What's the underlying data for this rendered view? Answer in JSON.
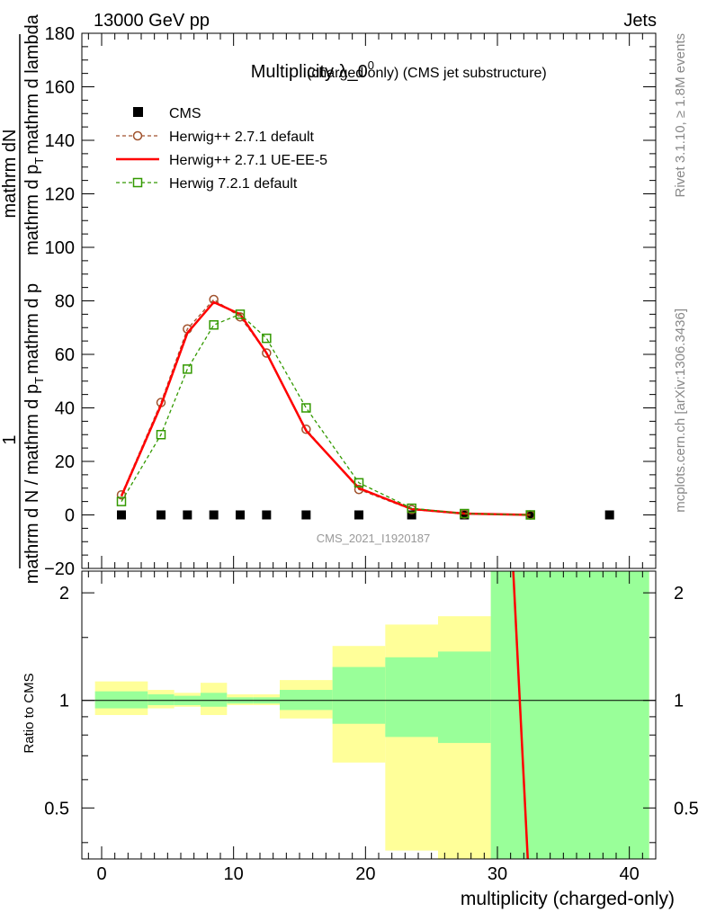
{
  "header": {
    "energy_label": "13000 GeV pp",
    "category_label": "Jets",
    "rivet_version": "Rivet 3.1.10, ≥ 1.8M events",
    "source_credit": "mcplots.cern.ch [arXiv:1306.3436]",
    "analysis_id": "CMS_2021_I1920187"
  },
  "chart_data": {
    "type": "line",
    "title_main": "Multiplicity λ_0",
    "title_sup": "0",
    "title_suffix": "(charged only) (CMS jet substructure)",
    "ylabel_fraction_top": "1",
    "ylabel_fraction_bottom": "mathrm d N / mathrm d p",
    "ylabel_fraction_bottom_sub": "T",
    "ylabel_fraction_bottom_tail": "mathrm d p",
    "ylabel_full_top": "mathrm d",
    "ylabel_full_top_tail": "N",
    "ylabel_full_bottom": "mathrm d p",
    "ylabel_full_bottom_sub": "T",
    "ylabel_full_bottom_tail": "mathrm d lambda",
    "xlabel": "multiplicity (charged-only)",
    "ratio_ylabel": "Ratio to CMS",
    "xlim": [
      -1.5,
      42
    ],
    "ylim": [
      -20,
      180
    ],
    "ratio_ylim": [
      0.36,
      2.3
    ],
    "x_ticks": [
      0,
      10,
      20,
      30,
      40
    ],
    "y_ticks": [
      -20,
      0,
      20,
      40,
      60,
      80,
      100,
      120,
      140,
      160,
      180
    ],
    "ratio_ticks": [
      0.5,
      1,
      2
    ],
    "legend_position": "top-left",
    "series": [
      {
        "name": "CMS",
        "style": "data",
        "color": "#000000",
        "x": [
          1.5,
          4.5,
          6.5,
          8.5,
          10.5,
          12.5,
          15.5,
          19.5,
          23.5,
          27.5,
          32.5,
          38.5
        ],
        "y": [
          0,
          0,
          0,
          0,
          0,
          0,
          0,
          0,
          0,
          0,
          0,
          0
        ]
      },
      {
        "name": "Herwig++ 2.7.1 default",
        "style": "dashed-circle",
        "color": "#a0522d",
        "x": [
          1.5,
          4.5,
          6.5,
          8.5,
          10.5,
          12.5,
          15.5,
          19.5,
          23.5,
          27.5,
          32.5
        ],
        "y": [
          7.5,
          42,
          69.5,
          80.5,
          74,
          60.5,
          32,
          9.5,
          2,
          0.3,
          0
        ]
      },
      {
        "name": "Herwig++ 2.7.1 UE-EE-5",
        "style": "solid",
        "color": "#ff0000",
        "x": [
          1.5,
          4.5,
          6.5,
          8.5,
          10.5,
          12.5,
          15.5,
          19.5,
          23.5,
          27.5,
          32.5
        ],
        "y": [
          7,
          41,
          68,
          79.5,
          75,
          60.5,
          31.5,
          10,
          2.2,
          0.5,
          0
        ]
      },
      {
        "name": "Herwig 7.2.1 default",
        "style": "dashed-square",
        "color": "#339900",
        "x": [
          1.5,
          4.5,
          6.5,
          8.5,
          10.5,
          12.5,
          15.5,
          19.5,
          23.5,
          27.5,
          32.5
        ],
        "y": [
          5,
          30,
          54.5,
          71,
          75,
          66,
          40,
          12,
          2.5,
          0.5,
          0
        ]
      }
    ],
    "ratio_bands": {
      "stat_color": "#99ff99",
      "total_color": "#ffff99",
      "bins": [
        {
          "lo": -0.5,
          "hi": 3.5,
          "stat": [
            0.95,
            1.06
          ],
          "total": [
            0.91,
            1.13
          ]
        },
        {
          "lo": 3.5,
          "hi": 5.5,
          "stat": [
            0.97,
            1.04
          ],
          "total": [
            0.95,
            1.07
          ]
        },
        {
          "lo": 5.5,
          "hi": 7.5,
          "stat": [
            0.97,
            1.03
          ],
          "total": [
            0.96,
            1.05
          ]
        },
        {
          "lo": 7.5,
          "hi": 9.5,
          "stat": [
            0.96,
            1.05
          ],
          "total": [
            0.91,
            1.12
          ]
        },
        {
          "lo": 9.5,
          "hi": 11.5,
          "stat": [
            0.98,
            1.02
          ],
          "total": [
            0.97,
            1.04
          ]
        },
        {
          "lo": 11.5,
          "hi": 13.5,
          "stat": [
            0.98,
            1.02
          ],
          "total": [
            0.97,
            1.04
          ]
        },
        {
          "lo": 13.5,
          "hi": 17.5,
          "stat": [
            0.94,
            1.07
          ],
          "total": [
            0.89,
            1.14
          ]
        },
        {
          "lo": 17.5,
          "hi": 21.5,
          "stat": [
            0.86,
            1.24
          ],
          "total": [
            0.67,
            1.42
          ]
        },
        {
          "lo": 21.5,
          "hi": 25.5,
          "stat": [
            0.79,
            1.32
          ],
          "total": [
            0.38,
            1.63
          ]
        },
        {
          "lo": 25.5,
          "hi": 29.5,
          "stat": [
            0.76,
            1.37
          ],
          "total": [
            0.36,
            1.72
          ]
        },
        {
          "lo": 29.5,
          "hi": 41.5,
          "stat": [
            0.36,
            2.3
          ],
          "total": [
            0.36,
            2.3
          ]
        }
      ]
    },
    "ratio_series": [
      {
        "name": "Herwig++ 2.7.1 UE-EE-5",
        "color": "#ff0000",
        "x": [
          31.2,
          32.3
        ],
        "y": [
          2.3,
          0.36
        ]
      }
    ]
  }
}
